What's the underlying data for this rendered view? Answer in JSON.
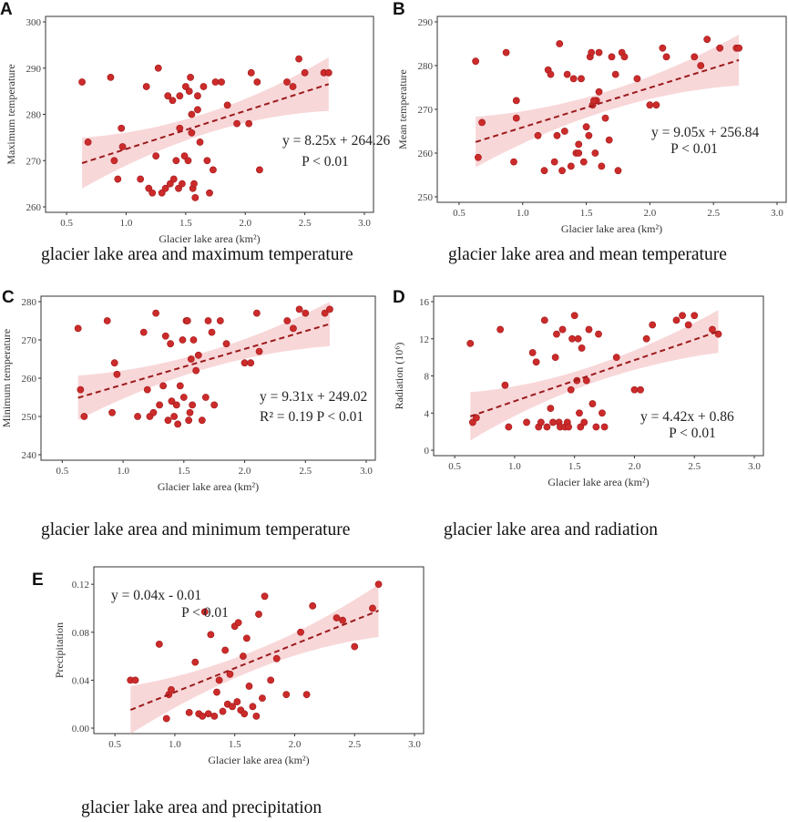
{
  "figure": {
    "colors": {
      "point": "#cc2b2b",
      "point_edge": "#a01818",
      "fit_line": "#9b1b1b",
      "band": "#f6c9cc"
    }
  },
  "chart_data": [
    {
      "id": "A",
      "letter": "A",
      "type": "scatter",
      "caption": "glacier lake area and maximum temperature",
      "xlabel": "Glacier lake area (km²)",
      "ylabel": "Maximum temperature",
      "xlim": [
        0.4,
        3.0
      ],
      "ylim": [
        260,
        300
      ],
      "xticks": [
        "0.5",
        "1.0",
        "1.5",
        "2.0",
        "2.5",
        "3.0"
      ],
      "yticks": [
        "260",
        "270",
        "280",
        "290",
        "300"
      ],
      "fit": {
        "slope": 8.25,
        "intercept": 264.26,
        "band_start": 5.5,
        "band_mid": 2.2,
        "band_end": 5.8
      },
      "equation": "y = 8.25x + 264.26",
      "stat": "P < 0.01",
      "x": [
        0.63,
        0.68,
        0.87,
        0.93,
        0.96,
        0.97,
        1.12,
        1.17,
        1.19,
        1.22,
        1.25,
        1.27,
        1.3,
        1.33,
        1.35,
        1.37,
        1.39,
        1.4,
        1.42,
        1.44,
        1.45,
        1.47,
        1.49,
        1.5,
        1.52,
        1.53,
        1.54,
        1.55,
        1.56,
        1.57,
        1.58,
        1.6,
        1.62,
        1.65,
        1.68,
        1.7,
        1.73,
        1.75,
        1.8,
        1.85,
        1.93,
        2.03,
        2.05,
        2.1,
        2.12,
        2.35,
        2.4,
        2.45,
        2.5,
        2.66,
        2.7,
        0.9,
        1.6,
        1.45,
        1.55
      ],
      "y": [
        287,
        274,
        288,
        266,
        277,
        273,
        266,
        286,
        264,
        263,
        271,
        290,
        263,
        264,
        284,
        265,
        283,
        266,
        270,
        264,
        284,
        265,
        271,
        286,
        270,
        285,
        288,
        276,
        264,
        265,
        262,
        281,
        274,
        286,
        270,
        263,
        268,
        287,
        287,
        282,
        278,
        278,
        289,
        287,
        268,
        287,
        286,
        292,
        289,
        289,
        289,
        270,
        284,
        277,
        280
      ]
    },
    {
      "id": "B",
      "letter": "B",
      "type": "scatter",
      "caption": "glacier lake area and mean temperature",
      "xlabel": "Glacier lake area (km²)",
      "ylabel": "Mean temperature",
      "xlim": [
        0.4,
        3.0
      ],
      "ylim": [
        250,
        290
      ],
      "xticks": [
        "0.5",
        "1.0",
        "1.5",
        "2.0",
        "2.5",
        "3.0"
      ],
      "yticks": [
        "250",
        "260",
        "270",
        "280",
        "290"
      ],
      "fit": {
        "slope": 9.05,
        "intercept": 256.84,
        "band_start": 5.8,
        "band_mid": 2.2,
        "band_end": 5.8
      },
      "equation": "y = 9.05x + 256.84",
      "stat": "P < 0.01",
      "x": [
        0.63,
        0.65,
        0.68,
        0.87,
        0.93,
        0.95,
        1.12,
        1.17,
        1.2,
        1.22,
        1.25,
        1.27,
        1.29,
        1.31,
        1.33,
        1.35,
        1.38,
        1.4,
        1.42,
        1.44,
        1.46,
        1.48,
        1.5,
        1.52,
        1.53,
        1.54,
        1.55,
        1.57,
        1.58,
        1.6,
        1.62,
        1.65,
        1.68,
        1.7,
        1.73,
        1.75,
        1.78,
        1.8,
        1.9,
        2.0,
        2.05,
        2.1,
        2.13,
        2.35,
        2.4,
        2.45,
        2.55,
        2.68,
        2.7,
        0.95,
        1.56,
        1.44,
        1.6
      ],
      "y": [
        281,
        259,
        267,
        283,
        258,
        272,
        264,
        256,
        279,
        278,
        258,
        264,
        285,
        256,
        265,
        278,
        257,
        277,
        260,
        260,
        277,
        258,
        266,
        264,
        282,
        283,
        271,
        260,
        272,
        283,
        257,
        268,
        263,
        282,
        278,
        256,
        283,
        282,
        277,
        271,
        271,
        284,
        282,
        282,
        280,
        286,
        284,
        284,
        284,
        268,
        272,
        262,
        274
      ]
    },
    {
      "id": "C",
      "letter": "C",
      "type": "scatter",
      "caption": "glacier lake area and minimum temperature",
      "xlabel": "Glacier lake area (km²)",
      "ylabel": "Minimum temperature",
      "xlim": [
        0.4,
        3.0
      ],
      "ylim": [
        240,
        280
      ],
      "xticks": [
        "0.5",
        "1.0",
        "1.5",
        "2.0",
        "2.5",
        "3.0"
      ],
      "yticks": [
        "240",
        "250",
        "260",
        "270",
        "280"
      ],
      "fit": {
        "slope": 9.31,
        "intercept": 249.02,
        "band_start": 5.8,
        "band_mid": 2.2,
        "band_end": 5.8
      },
      "equation": "y = 9.31x + 249.02",
      "stat": "R² = 0.19  P < 0.01",
      "x": [
        0.63,
        0.65,
        0.68,
        0.87,
        0.91,
        0.93,
        0.95,
        1.12,
        1.17,
        1.2,
        1.22,
        1.25,
        1.27,
        1.3,
        1.33,
        1.35,
        1.37,
        1.39,
        1.4,
        1.42,
        1.44,
        1.45,
        1.47,
        1.49,
        1.5,
        1.52,
        1.53,
        1.54,
        1.55,
        1.56,
        1.57,
        1.58,
        1.6,
        1.62,
        1.65,
        1.68,
        1.7,
        1.73,
        1.75,
        1.8,
        1.85,
        2.0,
        2.05,
        2.1,
        2.12,
        2.35,
        2.4,
        2.45,
        2.5,
        2.66,
        2.7
      ],
      "y": [
        273,
        257,
        250,
        275,
        251,
        264,
        261,
        250,
        272,
        257,
        250,
        251,
        277,
        253,
        258,
        271,
        249,
        269,
        254,
        250,
        253,
        248,
        258,
        270,
        255,
        275,
        275,
        249,
        251,
        265,
        253,
        270,
        262,
        266,
        249,
        255,
        275,
        272,
        253,
        275,
        269,
        264,
        264,
        277,
        267,
        275,
        273,
        278,
        277,
        277,
        278
      ]
    },
    {
      "id": "D",
      "letter": "D",
      "type": "scatter",
      "caption": "glacier lake area and radiation",
      "xlabel": "Glacier lake area (km²)",
      "ylabel": "Radiation (10⁶)",
      "xlim": [
        0.4,
        3.0
      ],
      "ylim": [
        0,
        16
      ],
      "xticks": [
        "0.5",
        "1.0",
        "1.5",
        "2.0",
        "2.5",
        "3.0"
      ],
      "yticks": [
        "0",
        "4",
        "8",
        "12",
        "16"
      ],
      "fit": {
        "slope": 4.42,
        "intercept": 0.86,
        "band_start": 2.6,
        "band_mid": 0.9,
        "band_end": 2.3
      },
      "equation": "y = 4.42x + 0.86",
      "stat": "P < 0.01",
      "x": [
        0.63,
        0.65,
        0.68,
        0.88,
        0.92,
        0.95,
        1.1,
        1.15,
        1.18,
        1.2,
        1.22,
        1.25,
        1.27,
        1.3,
        1.32,
        1.34,
        1.35,
        1.37,
        1.38,
        1.4,
        1.42,
        1.44,
        1.45,
        1.47,
        1.48,
        1.5,
        1.52,
        1.53,
        1.54,
        1.55,
        1.56,
        1.58,
        1.6,
        1.62,
        1.65,
        1.68,
        1.7,
        1.73,
        1.75,
        1.85,
        2.0,
        2.05,
        2.1,
        2.15,
        2.35,
        2.4,
        2.45,
        2.5,
        2.65,
        2.7
      ],
      "y": [
        11.5,
        3.0,
        3.5,
        13,
        7,
        2.5,
        3.0,
        10.5,
        9.5,
        2.5,
        3.0,
        14,
        2.5,
        4.5,
        3.0,
        10,
        12.5,
        3.0,
        2.5,
        13,
        2.5,
        3.0,
        2.5,
        6.5,
        12,
        14.5,
        7.5,
        12,
        4.0,
        2.5,
        11,
        3.0,
        7.5,
        13,
        5.0,
        2.5,
        12.5,
        4.0,
        2.5,
        10,
        6.5,
        6.5,
        12,
        13.5,
        14,
        14.5,
        13.5,
        14.5,
        13.0,
        12.5
      ]
    },
    {
      "id": "E",
      "letter": "E",
      "type": "scatter",
      "caption": "glacier lake area and precipitation",
      "xlabel": "Glacier lake area (km²)",
      "ylabel": "Precipitation",
      "xlim": [
        0.4,
        3.0
      ],
      "ylim": [
        0,
        0.13
      ],
      "xticks": [
        "0.5",
        "1.0",
        "1.5",
        "2.0",
        "2.5",
        "3.0"
      ],
      "yticks": [
        "0.00",
        "0.04",
        "0.08",
        "0.12"
      ],
      "fit": {
        "slope": 0.04,
        "intercept": -0.01,
        "band_start": 0.02,
        "band_mid": 0.008,
        "band_end": 0.022
      },
      "equation": "y = 0.04x - 0.01",
      "stat": "P < 0.01",
      "x": [
        0.63,
        0.67,
        0.87,
        0.93,
        0.95,
        0.97,
        1.12,
        1.17,
        1.2,
        1.23,
        1.25,
        1.28,
        1.3,
        1.33,
        1.35,
        1.37,
        1.4,
        1.42,
        1.44,
        1.46,
        1.48,
        1.5,
        1.52,
        1.53,
        1.55,
        1.57,
        1.58,
        1.6,
        1.62,
        1.65,
        1.68,
        1.7,
        1.73,
        1.75,
        1.8,
        1.85,
        1.93,
        2.05,
        2.1,
        2.15,
        2.35,
        2.4,
        2.5,
        2.65,
        2.7
      ],
      "y": [
        0.04,
        0.04,
        0.07,
        0.008,
        0.028,
        0.032,
        0.013,
        0.055,
        0.012,
        0.01,
        0.097,
        0.012,
        0.078,
        0.01,
        0.03,
        0.04,
        0.014,
        0.065,
        0.02,
        0.045,
        0.018,
        0.085,
        0.022,
        0.088,
        0.015,
        0.06,
        0.012,
        0.075,
        0.035,
        0.018,
        0.01,
        0.095,
        0.025,
        0.11,
        0.04,
        0.058,
        0.028,
        0.08,
        0.028,
        0.102,
        0.092,
        0.09,
        0.068,
        0.1,
        0.12
      ]
    }
  ]
}
